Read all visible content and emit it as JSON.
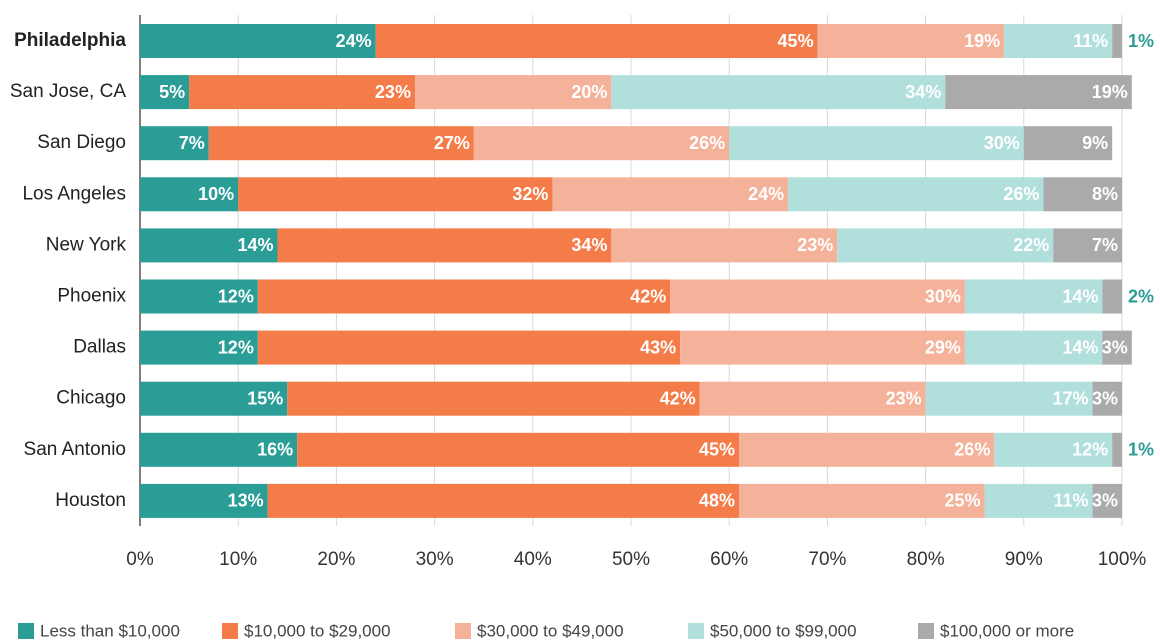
{
  "chart_data": {
    "type": "stacked_barh",
    "categories": [
      "Philadelphia",
      "San Jose, CA",
      "San Diego",
      "Los Angeles",
      "New York",
      "Phoenix",
      "Dallas",
      "Chicago",
      "San Antonio",
      "Houston"
    ],
    "series": [
      {
        "name": "Less than $10,000",
        "color": "#2a9d96",
        "values": [
          24,
          5,
          7,
          10,
          14,
          12,
          12,
          15,
          16,
          13
        ],
        "value_labels": [
          "24%",
          "5%",
          "7%",
          "10%",
          "14%",
          "12%",
          "12%",
          "15%",
          "16%",
          "13%"
        ]
      },
      {
        "name": "$10,000 to $29,000",
        "color": "#f47c48",
        "values": [
          45,
          23,
          27,
          32,
          34,
          42,
          43,
          42,
          45,
          48
        ],
        "value_labels": [
          "45%",
          "23%",
          "27%",
          "32%",
          "34%",
          "42%",
          "43%",
          "42%",
          "45%",
          "48%"
        ]
      },
      {
        "name": "$30,000 to $49,000",
        "color": "#f4b29a",
        "values": [
          19,
          20,
          26,
          24,
          23,
          30,
          29,
          23,
          26,
          25
        ],
        "value_labels": [
          "19%",
          "20%",
          "26%",
          "24%",
          "23%",
          "30%",
          "29%",
          "23%",
          "26%",
          "25%"
        ]
      },
      {
        "name": "$50,000 to $99,000",
        "color": "#b1e0dc",
        "values": [
          11,
          34,
          30,
          26,
          22,
          14,
          14,
          17,
          12,
          11
        ],
        "value_labels": [
          "11%",
          "34%",
          "30%",
          "26%",
          "22%",
          "14%",
          "14%",
          "17%",
          "12%",
          "11%"
        ]
      },
      {
        "name": "$100,000 or more",
        "color": "#aaaaaa",
        "values": [
          1,
          19,
          9,
          8,
          7,
          2,
          3,
          3,
          1,
          3
        ],
        "value_labels": [
          "1%",
          "19%",
          "9%",
          "8%",
          "7%",
          "2%",
          "3%",
          "3%",
          "1%",
          "3%"
        ]
      }
    ],
    "xlim": [
      0,
      100
    ],
    "xticks": [
      {
        "value": 0,
        "label": "0%"
      },
      {
        "value": 10,
        "label": "10%"
      },
      {
        "value": 20,
        "label": "20%"
      },
      {
        "value": 30,
        "label": "30%"
      },
      {
        "value": 40,
        "label": "40%"
      },
      {
        "value": 50,
        "label": "50%"
      },
      {
        "value": 60,
        "label": "60%"
      },
      {
        "value": 70,
        "label": "70%"
      },
      {
        "value": 80,
        "label": "80%"
      },
      {
        "value": 90,
        "label": "90%"
      },
      {
        "value": 100,
        "label": "100%"
      }
    ],
    "grid": true,
    "legend": "bottom"
  }
}
